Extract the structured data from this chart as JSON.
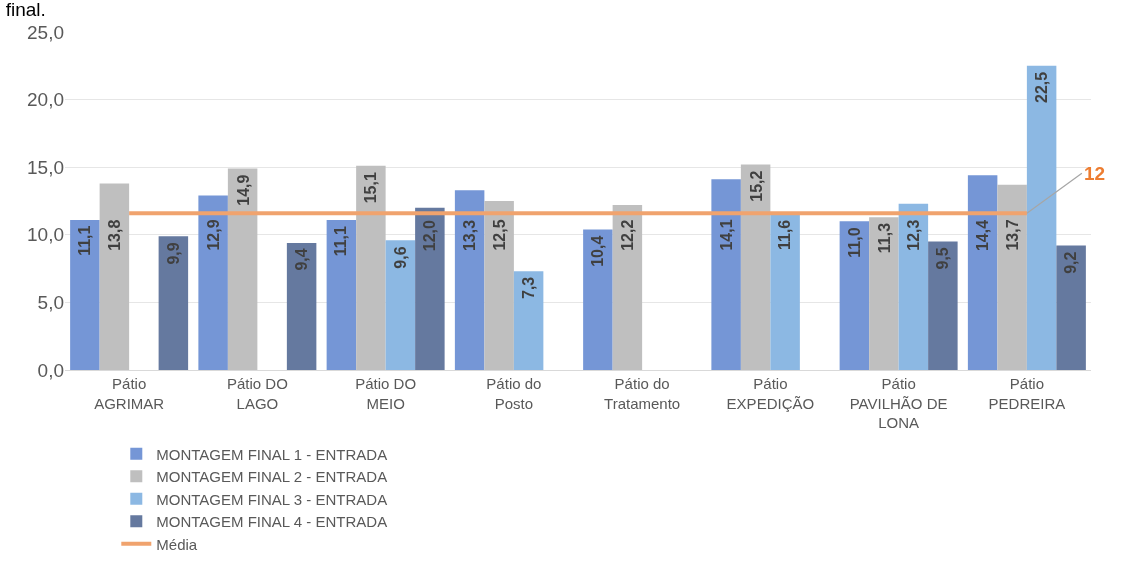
{
  "chart_data": {
    "type": "bar",
    "title": "final.",
    "categories": [
      "Pátio AGRIMAR",
      "Pátio DO LAGO",
      "Pátio DO MEIO",
      "Pátio do Posto",
      "Pátio do Tratamento",
      "Pátio EXPEDIÇÃO",
      "Pátio PAVILHÃO DE LONA",
      "Pátio PEDREIRA"
    ],
    "series": [
      {
        "name": "MONTAGEM FINAL 1 - ENTRADA",
        "color": "#7596d6",
        "values": [
          11.1,
          12.9,
          11.1,
          13.3,
          10.4,
          14.1,
          11.0,
          14.4
        ],
        "value_labels": [
          "11,1",
          "12,9",
          "11,1",
          "13,3",
          "10,4",
          "14,1",
          "11,0",
          "14,4"
        ]
      },
      {
        "name": "MONTAGEM FINAL 2 - ENTRADA",
        "color": "#bfbfbf",
        "values": [
          13.8,
          14.9,
          15.1,
          12.5,
          12.2,
          15.2,
          11.3,
          13.7
        ],
        "value_labels": [
          "13,8",
          "14,9",
          "15,1",
          "12,5",
          "12,2",
          "15,2",
          "11,3",
          "13,7"
        ]
      },
      {
        "name": "MONTAGEM FINAL 3 - ENTRADA",
        "color": "#8cb8e3",
        "values": [
          null,
          null,
          9.6,
          7.3,
          null,
          11.6,
          12.3,
          22.5
        ],
        "value_labels": [
          null,
          null,
          "9,6",
          "7,3",
          null,
          "11,6",
          "12,3",
          "22,5"
        ]
      },
      {
        "name": "MONTAGEM FINAL 4 - ENTRADA",
        "color": "#65799f",
        "values": [
          9.9,
          9.4,
          12.0,
          null,
          null,
          null,
          9.5,
          9.2
        ],
        "value_labels": [
          "9,9",
          "9,4",
          "12,0",
          null,
          null,
          null,
          "9,5",
          "9,2"
        ]
      },
      {
        "name": "Média",
        "type": "line",
        "color": "#f0a36e",
        "values": [
          11.6,
          11.6,
          11.6,
          11.6,
          11.6,
          11.6,
          11.6,
          11.6
        ],
        "value_labels": [
          null,
          null,
          null,
          null,
          null,
          null,
          null,
          "12"
        ]
      }
    ],
    "ylim": [
      0,
      25
    ],
    "yticks": [
      {
        "value": 0,
        "label": "0,0"
      },
      {
        "value": 5,
        "label": "5,0"
      },
      {
        "value": 10,
        "label": "10,0"
      },
      {
        "value": 15,
        "label": "15,0"
      },
      {
        "value": 20,
        "label": "20,0"
      },
      {
        "value": 25,
        "label": "25,0"
      }
    ],
    "grid": "y",
    "legend": "bottom"
  }
}
